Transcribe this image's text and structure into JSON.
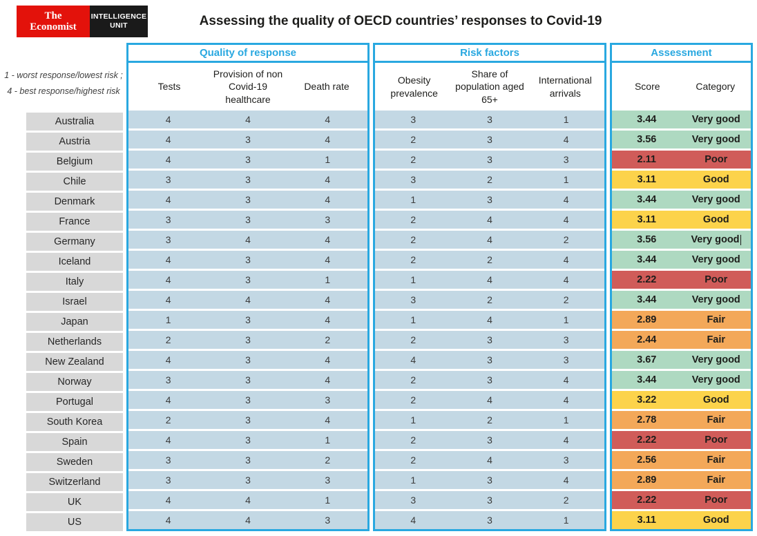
{
  "branding": {
    "logo_primary_line1": "The",
    "logo_primary_line2": "Economist",
    "logo_secondary_line1": "INTELLIGENCE",
    "logo_secondary_line2": "UNIT"
  },
  "title": "Assessing the quality of OECD countries’ responses to Covid-19",
  "legend": {
    "line1": "1 - worst response/lowest risk ;",
    "line2": "4 - best response/highest risk"
  },
  "colors": {
    "accent_cyan": "#29a8e0",
    "cell_blue": "#c3d8e4",
    "cell_gray": "#d8d8d8",
    "very_good_green": "#aed9c1",
    "good_yellow": "#fcd34b",
    "fair_orange": "#f3a859",
    "poor_red": "#d05c59",
    "logo_red": "#e3120b",
    "logo_black": "#1a1a1a",
    "text_dark": "#1d1d1b"
  },
  "chart_data": {
    "type": "table",
    "title": "Assessing the quality of OECD countries’ responses to Covid-19",
    "scale_note": [
      "1 - worst response/lowest risk ;",
      "4 - best response/highest risk"
    ],
    "groups": [
      {
        "label": "Quality of response",
        "columns": [
          "Tests",
          "Provision of non Covid-19 healthcare",
          "Death rate"
        ]
      },
      {
        "label": "Risk factors",
        "columns": [
          "Obesity prevalence",
          "Share of population aged 65+",
          "International arrivals"
        ]
      },
      {
        "label": "Assessment",
        "columns": [
          "Score",
          "Category"
        ]
      }
    ],
    "rows": [
      {
        "country": "Australia",
        "tests": 4,
        "provision": 4,
        "death_rate": 4,
        "obesity": 3,
        "share_65": 3,
        "intl_arrivals": 1,
        "score": "3.44",
        "category": "Very good",
        "category_class": "very-good"
      },
      {
        "country": "Austria",
        "tests": 4,
        "provision": 3,
        "death_rate": 4,
        "obesity": 2,
        "share_65": 3,
        "intl_arrivals": 4,
        "score": "3.56",
        "category": "Very good",
        "category_class": "very-good"
      },
      {
        "country": "Belgium",
        "tests": 4,
        "provision": 3,
        "death_rate": 1,
        "obesity": 2,
        "share_65": 3,
        "intl_arrivals": 3,
        "score": "2.11",
        "category": "Poor",
        "category_class": "poor"
      },
      {
        "country": "Chile",
        "tests": 3,
        "provision": 3,
        "death_rate": 4,
        "obesity": 3,
        "share_65": 2,
        "intl_arrivals": 1,
        "score": "3.11",
        "category": "Good",
        "category_class": "good"
      },
      {
        "country": "Denmark",
        "tests": 4,
        "provision": 3,
        "death_rate": 4,
        "obesity": 1,
        "share_65": 3,
        "intl_arrivals": 4,
        "score": "3.44",
        "category": "Very good",
        "category_class": "very-good"
      },
      {
        "country": "France",
        "tests": 3,
        "provision": 3,
        "death_rate": 3,
        "obesity": 2,
        "share_65": 4,
        "intl_arrivals": 4,
        "score": "3.11",
        "category": "Good",
        "category_class": "good"
      },
      {
        "country": "Germany",
        "tests": 3,
        "provision": 4,
        "death_rate": 4,
        "obesity": 2,
        "share_65": 4,
        "intl_arrivals": 2,
        "score": "3.56",
        "category": "Very good",
        "category_class": "very-good",
        "caret": true
      },
      {
        "country": "Iceland",
        "tests": 4,
        "provision": 3,
        "death_rate": 4,
        "obesity": 2,
        "share_65": 2,
        "intl_arrivals": 4,
        "score": "3.44",
        "category": "Very good",
        "category_class": "very-good"
      },
      {
        "country": "Italy",
        "tests": 4,
        "provision": 3,
        "death_rate": 1,
        "obesity": 1,
        "share_65": 4,
        "intl_arrivals": 4,
        "score": "2.22",
        "category": "Poor",
        "category_class": "poor"
      },
      {
        "country": "Israel",
        "tests": 4,
        "provision": 4,
        "death_rate": 4,
        "obesity": 3,
        "share_65": 2,
        "intl_arrivals": 2,
        "score": "3.44",
        "category": "Very good",
        "category_class": "very-good"
      },
      {
        "country": "Japan",
        "tests": 1,
        "provision": 3,
        "death_rate": 4,
        "obesity": 1,
        "share_65": 4,
        "intl_arrivals": 1,
        "score": "2.89",
        "category": "Fair",
        "category_class": "fair"
      },
      {
        "country": "Netherlands",
        "tests": 2,
        "provision": 3,
        "death_rate": 2,
        "obesity": 2,
        "share_65": 3,
        "intl_arrivals": 3,
        "score": "2.44",
        "category": "Fair",
        "category_class": "fair"
      },
      {
        "country": "New Zealand",
        "tests": 4,
        "provision": 3,
        "death_rate": 4,
        "obesity": 4,
        "share_65": 3,
        "intl_arrivals": 3,
        "score": "3.67",
        "category": "Very good",
        "category_class": "very-good"
      },
      {
        "country": "Norway",
        "tests": 3,
        "provision": 3,
        "death_rate": 4,
        "obesity": 2,
        "share_65": 3,
        "intl_arrivals": 4,
        "score": "3.44",
        "category": "Very good",
        "category_class": "very-good"
      },
      {
        "country": "Portugal",
        "tests": 4,
        "provision": 3,
        "death_rate": 3,
        "obesity": 2,
        "share_65": 4,
        "intl_arrivals": 4,
        "score": "3.22",
        "category": "Good",
        "category_class": "good"
      },
      {
        "country": "South Korea",
        "tests": 2,
        "provision": 3,
        "death_rate": 4,
        "obesity": 1,
        "share_65": 2,
        "intl_arrivals": 1,
        "score": "2.78",
        "category": "Fair",
        "category_class": "fair"
      },
      {
        "country": "Spain",
        "tests": 4,
        "provision": 3,
        "death_rate": 1,
        "obesity": 2,
        "share_65": 3,
        "intl_arrivals": 4,
        "score": "2.22",
        "category": "Poor",
        "category_class": "poor"
      },
      {
        "country": "Sweden",
        "tests": 3,
        "provision": 3,
        "death_rate": 2,
        "obesity": 2,
        "share_65": 4,
        "intl_arrivals": 3,
        "score": "2.56",
        "category": "Fair",
        "category_class": "fair"
      },
      {
        "country": "Switzerland",
        "tests": 3,
        "provision": 3,
        "death_rate": 3,
        "obesity": 1,
        "share_65": 3,
        "intl_arrivals": 4,
        "score": "2.89",
        "category": "Fair",
        "category_class": "fair"
      },
      {
        "country": "UK",
        "tests": 4,
        "provision": 4,
        "death_rate": 1,
        "obesity": 3,
        "share_65": 3,
        "intl_arrivals": 2,
        "score": "2.22",
        "category": "Poor",
        "category_class": "poor"
      },
      {
        "country": "US",
        "tests": 4,
        "provision": 4,
        "death_rate": 3,
        "obesity": 4,
        "share_65": 3,
        "intl_arrivals": 1,
        "score": "3.11",
        "category": "Good",
        "category_class": "good"
      }
    ]
  }
}
